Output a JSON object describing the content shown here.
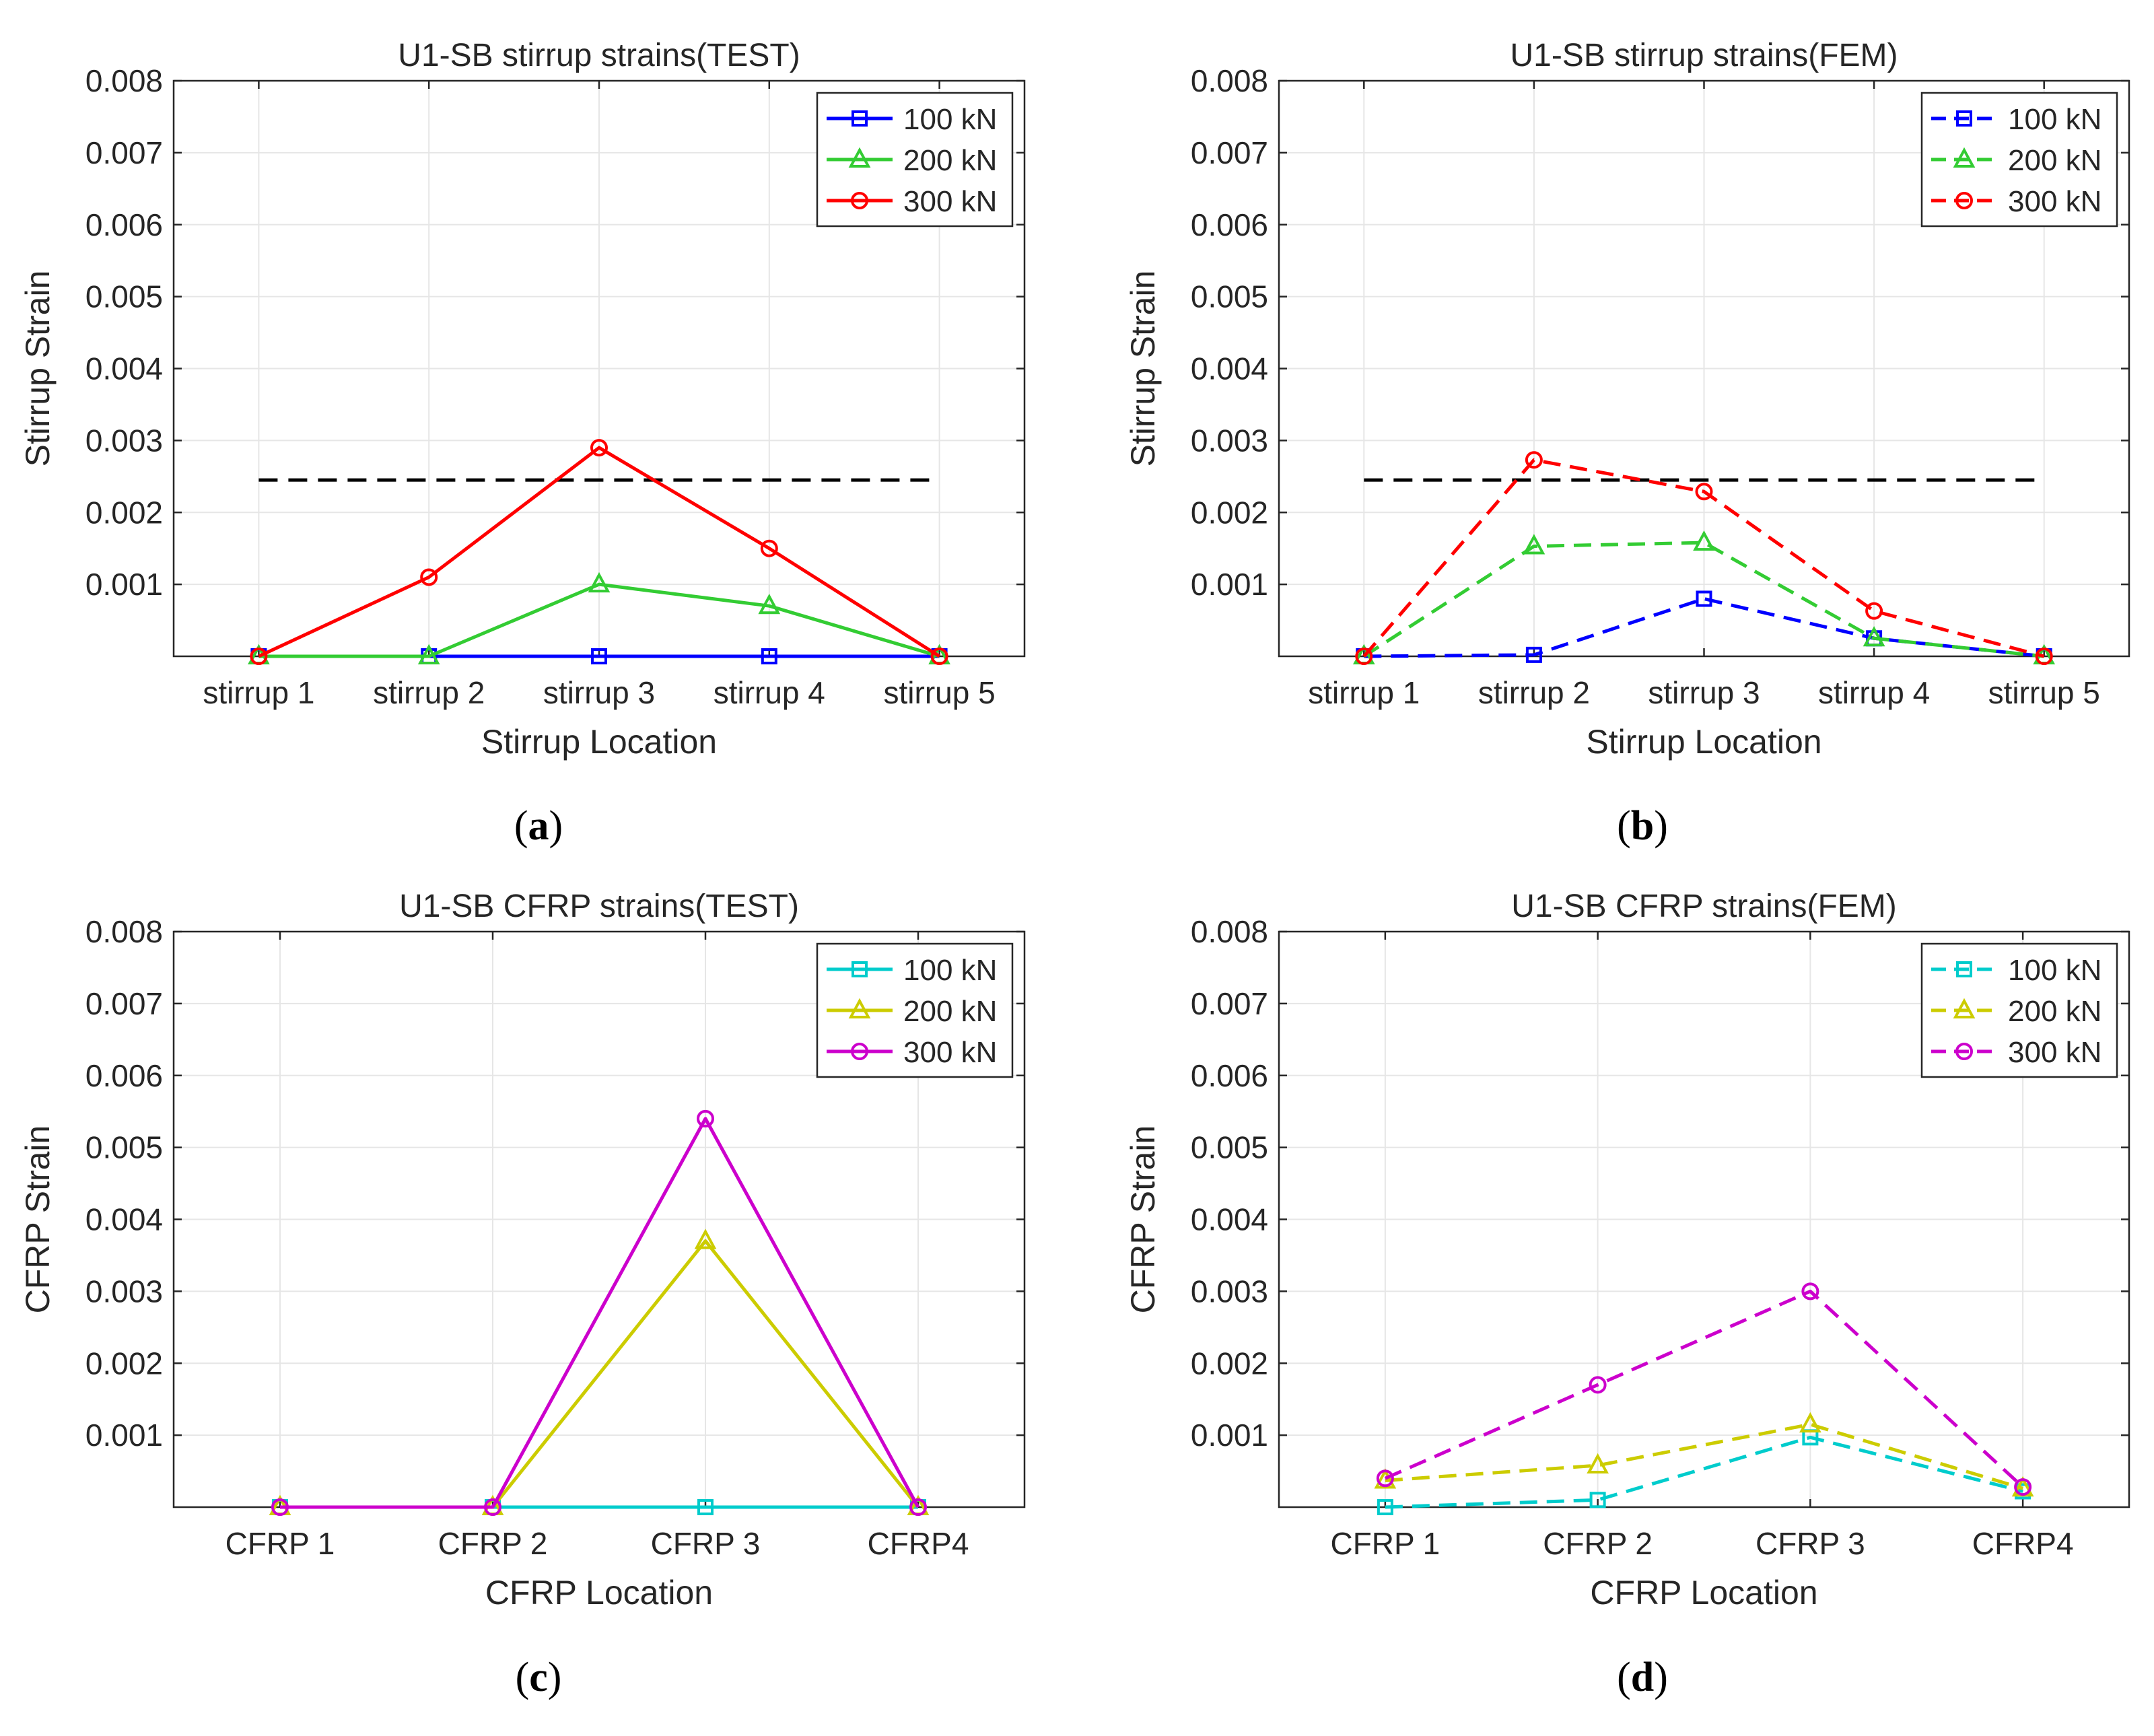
{
  "panels": [
    {
      "label_open": "(",
      "label_letter": "a",
      "label_close": ")",
      "chart_data": {
        "type": "line",
        "title": "U1-SB stirrup strains(TEST)",
        "xlabel": "Stirrup Location",
        "ylabel": "Stirrup Strain",
        "categories": [
          "stirrup 1",
          "stirrup 2",
          "stirrup 3",
          "stirrup 4",
          "stirrup 5"
        ],
        "ylim": [
          0,
          0.008
        ],
        "yticks": [
          0.001,
          0.002,
          0.003,
          0.004,
          0.005,
          0.006,
          0.007,
          0.008
        ],
        "ytick_labels": [
          "0.001",
          "0.002",
          "0.003",
          "0.004",
          "0.005",
          "0.006",
          "0.007",
          "0.008"
        ],
        "grid": true,
        "legend_position": "top-right",
        "reference_line": {
          "value": 0.00245,
          "from": 1,
          "to": 5,
          "color": "#000000",
          "style": "dashed"
        },
        "series": [
          {
            "name": "100 kN",
            "color": "#0000ff",
            "marker": "square",
            "style": "solid",
            "values": [
              0,
              0,
              0,
              0,
              0
            ]
          },
          {
            "name": "200 kN",
            "color": "#33cc33",
            "marker": "triangle",
            "style": "solid",
            "values": [
              0,
              0,
              0.001,
              0.0007,
              0
            ]
          },
          {
            "name": "300 kN",
            "color": "#ff0000",
            "marker": "circle",
            "style": "solid",
            "values": [
              0,
              0.0011,
              0.0029,
              0.0015,
              0
            ]
          }
        ]
      }
    },
    {
      "label_open": "(",
      "label_letter": "b",
      "label_close": ")",
      "chart_data": {
        "type": "line",
        "title": "U1-SB stirrup strains(FEM)",
        "xlabel": "Stirrup Location",
        "ylabel": "Stirrup Strain",
        "categories": [
          "stirrup 1",
          "stirrup 2",
          "stirrup 3",
          "stirrup 4",
          "stirrup 5"
        ],
        "ylim": [
          0,
          0.008
        ],
        "yticks": [
          0.001,
          0.002,
          0.003,
          0.004,
          0.005,
          0.006,
          0.007,
          0.008
        ],
        "ytick_labels": [
          "0.001",
          "0.002",
          "0.003",
          "0.004",
          "0.005",
          "0.006",
          "0.007",
          "0.008"
        ],
        "grid": true,
        "legend_position": "top-right",
        "reference_line": {
          "value": 0.00245,
          "from": 1,
          "to": 5,
          "color": "#000000",
          "style": "dashed"
        },
        "series": [
          {
            "name": "100 kN",
            "color": "#0000ff",
            "marker": "square",
            "style": "dashed",
            "values": [
              0,
              2e-05,
              0.0008,
              0.00025,
              0
            ]
          },
          {
            "name": "200 kN",
            "color": "#33cc33",
            "marker": "triangle",
            "style": "dashed",
            "values": [
              0,
              0.00153,
              0.00158,
              0.00025,
              0
            ]
          },
          {
            "name": "300 kN",
            "color": "#ff0000",
            "marker": "circle",
            "style": "dashed",
            "values": [
              0,
              0.00273,
              0.00229,
              0.00063,
              0
            ]
          }
        ]
      }
    },
    {
      "label_open": "(",
      "label_letter": "c",
      "label_close": ")",
      "chart_data": {
        "type": "line",
        "title": "U1-SB CFRP strains(TEST)",
        "xlabel": "CFRP Location",
        "ylabel": "CFRP Strain",
        "categories": [
          "CFRP 1",
          "CFRP 2",
          "CFRP 3",
          "CFRP4"
        ],
        "ylim": [
          0,
          0.008
        ],
        "yticks": [
          0.001,
          0.002,
          0.003,
          0.004,
          0.005,
          0.006,
          0.007,
          0.008
        ],
        "ytick_labels": [
          "0.001",
          "0.002",
          "0.003",
          "0.004",
          "0.005",
          "0.006",
          "0.007",
          "0.008"
        ],
        "grid": true,
        "legend_position": "top-right",
        "series": [
          {
            "name": "100 kN",
            "color": "#00cccc",
            "marker": "square",
            "style": "solid",
            "values": [
              0,
              0,
              0,
              0
            ]
          },
          {
            "name": "200 kN",
            "color": "#cccc00",
            "marker": "triangle",
            "style": "solid",
            "values": [
              0,
              0,
              0.0037,
              0
            ]
          },
          {
            "name": "300 kN",
            "color": "#cc00cc",
            "marker": "circle",
            "style": "solid",
            "values": [
              0,
              0,
              0.0054,
              0
            ]
          }
        ]
      }
    },
    {
      "label_open": "(",
      "label_letter": "d",
      "label_close": ")",
      "chart_data": {
        "type": "line",
        "title": "U1-SB CFRP strains(FEM)",
        "xlabel": "CFRP Location",
        "ylabel": "CFRP Strain",
        "categories": [
          "CFRP 1",
          "CFRP 2",
          "CFRP 3",
          "CFRP4"
        ],
        "ylim": [
          0,
          0.008
        ],
        "yticks": [
          0.001,
          0.002,
          0.003,
          0.004,
          0.005,
          0.006,
          0.007,
          0.008
        ],
        "ytick_labels": [
          "0.001",
          "0.002",
          "0.003",
          "0.004",
          "0.005",
          "0.006",
          "0.007",
          "0.008"
        ],
        "grid": true,
        "legend_position": "top-right",
        "series": [
          {
            "name": "100 kN",
            "color": "#00cccc",
            "marker": "square",
            "style": "dashed",
            "values": [
              0,
              0.0001,
              0.00097,
              0.00022
            ]
          },
          {
            "name": "200 kN",
            "color": "#cccc00",
            "marker": "triangle",
            "style": "dashed",
            "values": [
              0.00037,
              0.00058,
              0.00115,
              0.00026
            ]
          },
          {
            "name": "300 kN",
            "color": "#cc00cc",
            "marker": "circle",
            "style": "dashed",
            "values": [
              0.0004,
              0.0017,
              0.003,
              0.00028
            ]
          }
        ]
      }
    }
  ]
}
